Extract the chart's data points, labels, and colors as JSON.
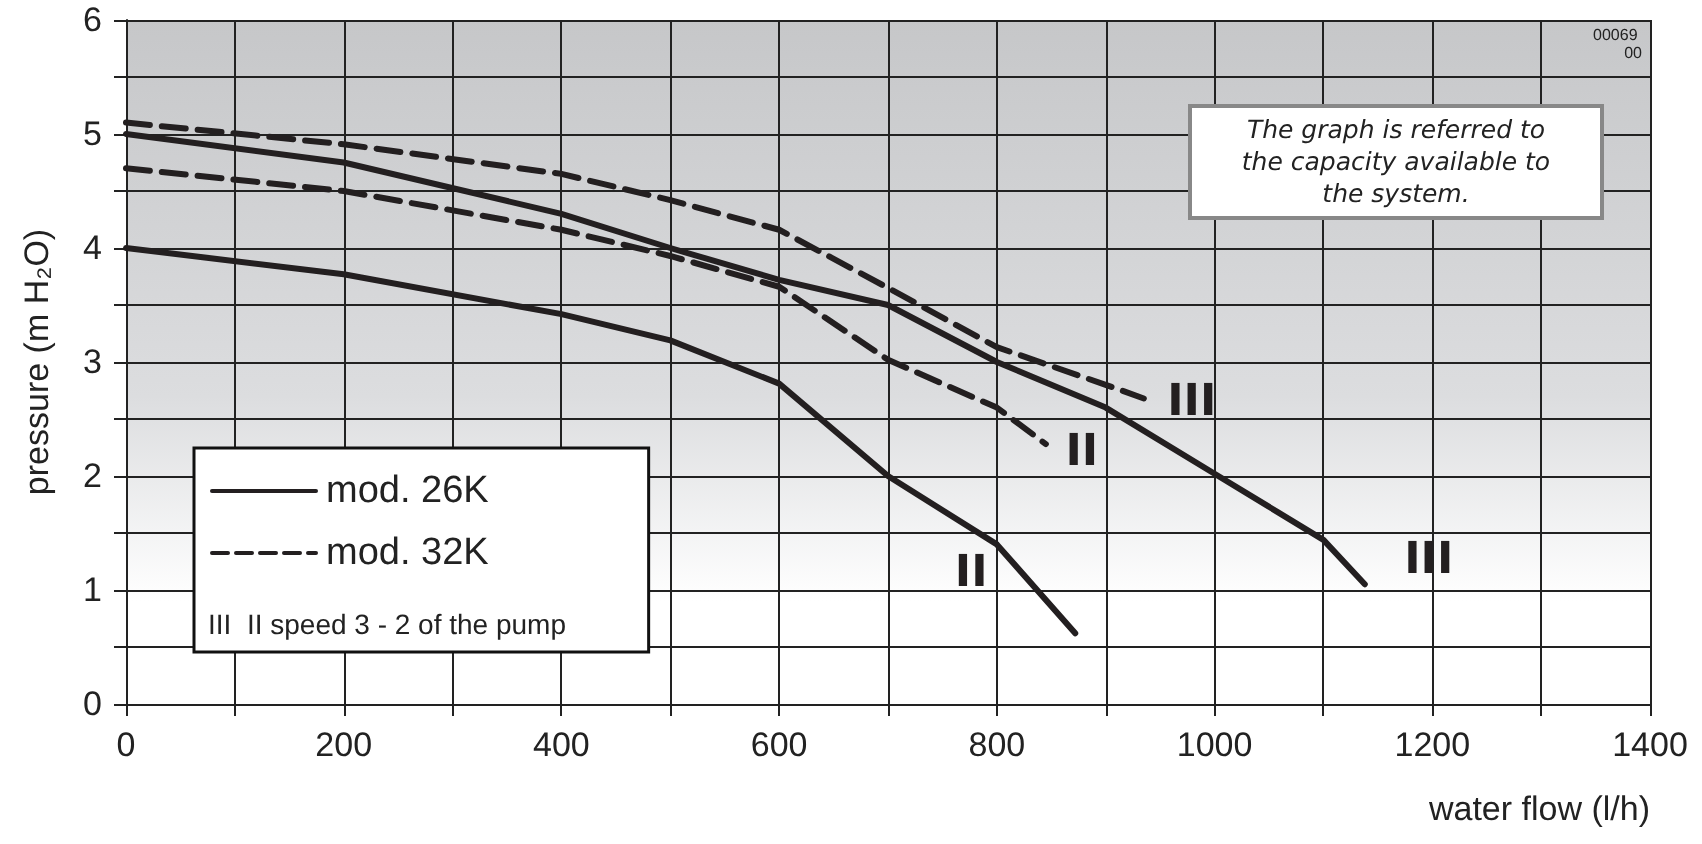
{
  "chart_data": {
    "type": "line",
    "xlabel": "water flow (l/h)",
    "ylabel": "pressure (m H₂O)",
    "xlim": [
      0,
      1400
    ],
    "xticks": [
      0,
      {
        "value": 100,
        "label": null
      },
      200,
      {
        "value": 300,
        "label": null
      },
      400,
      {
        "value": 500,
        "label": null
      },
      600,
      {
        "value": 700,
        "label": null
      },
      800,
      {
        "value": 900,
        "label": null
      },
      1000,
      {
        "value": 1100,
        "label": null
      },
      1200,
      {
        "value": 1300,
        "label": null
      },
      1400
    ],
    "ylim": [
      0,
      6
    ],
    "yticks": [
      0,
      {
        "value": 0.5,
        "label": null
      },
      1,
      {
        "value": 1.5,
        "label": null
      },
      2,
      {
        "value": 2.5,
        "label": null
      },
      3,
      {
        "value": 3.5,
        "label": null
      },
      4,
      {
        "value": 4.5,
        "label": null
      },
      5,
      {
        "value": 5.5,
        "label": null
      },
      6
    ],
    "grid": true,
    "legend": "bottom left",
    "marker": "none",
    "series": [
      {
        "name": "mod. 26K",
        "color": "#231f20",
        "line_style": "solid",
        "x": [
          0,
          200,
          400,
          500,
          600,
          700,
          800,
          900,
          1000,
          1100,
          1138
        ],
        "values": [
          5.0,
          4.75,
          4.3,
          4.0,
          3.72,
          3.5,
          3.0,
          2.6,
          2.02,
          1.44,
          1.05
        ]
      },
      {
        "color": "#231f20",
        "line_style": "solid",
        "x": [
          0,
          200,
          400,
          500,
          600,
          700,
          800,
          872
        ],
        "values": [
          4.0,
          3.77,
          3.42,
          3.19,
          2.81,
          2.0,
          1.4,
          0.62
        ]
      },
      {
        "name": "mod. 32K",
        "color": "#231f20",
        "line_style": "dashed",
        "x": [
          0,
          200,
          400,
          500,
          600,
          700,
          800,
          900,
          935
        ],
        "values": [
          5.1,
          4.91,
          4.65,
          4.42,
          4.16,
          3.65,
          3.13,
          2.8,
          2.68
        ]
      },
      {
        "color": "#231f20",
        "line_style": "dashed",
        "x": [
          0,
          200,
          400,
          500,
          600,
          700,
          800,
          845
        ],
        "values": [
          4.7,
          4.5,
          4.16,
          3.93,
          3.66,
          3.02,
          2.6,
          2.28
        ]
      }
    ],
    "annotations": [
      "III",
      "II",
      "III",
      "II",
      "III  II speed 3 - 2 of the pump",
      "The graph is referred to the capacity available to the system.",
      "00069 00"
    ]
  }
}
